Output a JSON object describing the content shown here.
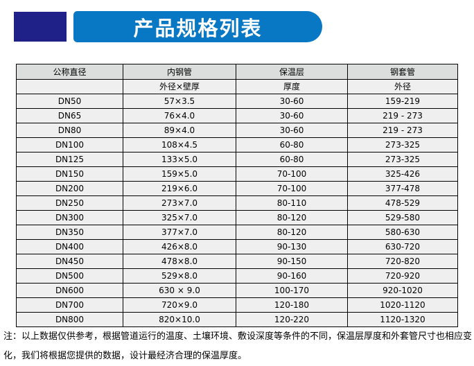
{
  "header": {
    "title": "产品规格列表"
  },
  "colors": {
    "navy": "#1f2088",
    "banner": "#0878c4",
    "headbg": "#dcdddd",
    "cellbg": "#efefef"
  },
  "table": {
    "columns": [
      {
        "label": "公称直径",
        "sublabel": ""
      },
      {
        "label": "内钢管",
        "sublabel": "外径×壁厚"
      },
      {
        "label": "保温层",
        "sublabel": "厚度"
      },
      {
        "label": "钢套管",
        "sublabel": "外径"
      }
    ],
    "rows": [
      [
        "DN50",
        "57×3.5",
        "30-60",
        "159-219"
      ],
      [
        "DN65",
        "76×4.0",
        "30-60",
        "219 - 273"
      ],
      [
        "DN80",
        "89×4.0",
        "30-60",
        "219 - 273"
      ],
      [
        "DN100",
        "108×4.5",
        "60-80",
        "273-325"
      ],
      [
        "DN125",
        "133×5.0",
        "60-80",
        "273-325"
      ],
      [
        "DN150",
        "159×5.0",
        "70-100",
        "325-426"
      ],
      [
        "DN200",
        "219×6.0",
        "70-100",
        "377-478"
      ],
      [
        "DN250",
        "273×7.0",
        "80-110",
        "478-529"
      ],
      [
        "DN300",
        "325×7.0",
        "80-120",
        "529-580"
      ],
      [
        "DN350",
        "377×7.0",
        "80-120",
        "580-630"
      ],
      [
        "DN400",
        "426×8.0",
        "90-130",
        "630-720"
      ],
      [
        "DN450",
        "478×8.0",
        "90-150",
        "720-820"
      ],
      [
        "DN500",
        "529×8.0",
        "90-160",
        "720-920"
      ],
      [
        "DN600",
        "630 × 9.0",
        "100-170",
        "920-1020"
      ],
      [
        "DN700",
        "720×9.0",
        "120-180",
        "1020-1120"
      ],
      [
        "DN800",
        "820×10.0",
        "120-220",
        "1120-1320"
      ]
    ]
  },
  "note": "注：以上数据仅供参考，根据管道运行的温度、土壤环境、敷设深度等条件的不同，保温层厚度和外套管尺寸也相应变化，我们将根据您提供的数据，设计最经济合理的保温厚度。"
}
